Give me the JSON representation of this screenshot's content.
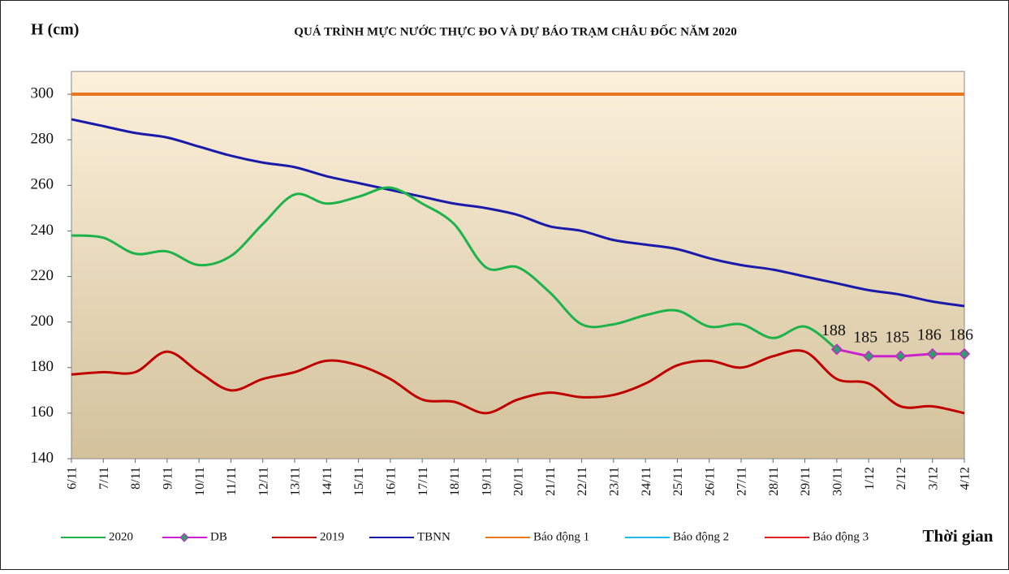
{
  "chart_data": {
    "type": "line",
    "title": "QUÁ TRÌNH MỰC NƯỚC THỰC ĐO VÀ DỰ BÁO TRẠM CHÂU ĐỐC NĂM 2020",
    "y_label": "H (cm)",
    "x_label": "Thời gian",
    "categories": [
      "6/11",
      "7/11",
      "8/11",
      "9/11",
      "10/11",
      "11/11",
      "12/11",
      "13/11",
      "14/11",
      "15/11",
      "16/11",
      "17/11",
      "18/11",
      "19/11",
      "20/11",
      "21/11",
      "22/11",
      "23/11",
      "24/11",
      "25/11",
      "26/11",
      "27/11",
      "28/11",
      "29/11",
      "30/11",
      "1/12",
      "2/12",
      "3/12",
      "4/12"
    ],
    "ylim": [
      140,
      310
    ],
    "yticks": [
      140,
      160,
      180,
      200,
      220,
      240,
      260,
      280,
      300
    ],
    "series": [
      {
        "name": "2020",
        "color": "#1db34a",
        "smooth": true,
        "values": [
          238,
          237,
          230,
          231,
          225,
          229,
          243,
          256,
          252,
          255,
          259,
          252,
          243,
          224,
          224,
          213,
          199,
          199,
          203,
          205,
          198,
          199,
          193,
          198,
          188,
          null,
          null,
          null,
          null
        ]
      },
      {
        "name": "DB",
        "color": "#cc22cc",
        "marker": "diamond",
        "marker_fill": "#2e9e6a",
        "values": [
          null,
          null,
          null,
          null,
          null,
          null,
          null,
          null,
          null,
          null,
          null,
          null,
          null,
          null,
          null,
          null,
          null,
          null,
          null,
          null,
          null,
          null,
          null,
          null,
          188,
          185,
          185,
          186,
          186
        ]
      },
      {
        "name": "2019",
        "color": "#c00000",
        "smooth": true,
        "values": [
          177,
          178,
          178,
          187,
          178,
          170,
          175,
          178,
          183,
          181,
          175,
          166,
          165,
          160,
          166,
          169,
          167,
          168,
          173,
          181,
          183,
          180,
          185,
          187,
          175,
          173,
          163,
          163,
          160
        ]
      },
      {
        "name": "TBNN",
        "color": "#1a1aaa",
        "smooth": true,
        "values": [
          289,
          286,
          283,
          281,
          277,
          273,
          270,
          268,
          264,
          261,
          258,
          255,
          252,
          250,
          247,
          242,
          240,
          236,
          234,
          232,
          228,
          225,
          223,
          220,
          217,
          214,
          212,
          209,
          207
        ]
      },
      {
        "name": "Báo động 1",
        "color": "#e87722",
        "values": [
          300,
          300,
          300,
          300,
          300,
          300,
          300,
          300,
          300,
          300,
          300,
          300,
          300,
          300,
          300,
          300,
          300,
          300,
          300,
          300,
          300,
          300,
          300,
          300,
          300,
          300,
          300,
          300,
          300
        ]
      },
      {
        "name": "Báo động 2",
        "color": "#22b8e8",
        "values": [
          null,
          null,
          null,
          null,
          null,
          null,
          null,
          null,
          null,
          null,
          null,
          null,
          null,
          null,
          null,
          null,
          null,
          null,
          null,
          null,
          null,
          null,
          null,
          null,
          null,
          null,
          null,
          null,
          null
        ]
      },
      {
        "name": "Báo động 3",
        "color": "#e02020",
        "values": [
          null,
          null,
          null,
          null,
          null,
          null,
          null,
          null,
          null,
          null,
          null,
          null,
          null,
          null,
          null,
          null,
          null,
          null,
          null,
          null,
          null,
          null,
          null,
          null,
          null,
          null,
          null,
          null,
          null
        ]
      }
    ]
  }
}
